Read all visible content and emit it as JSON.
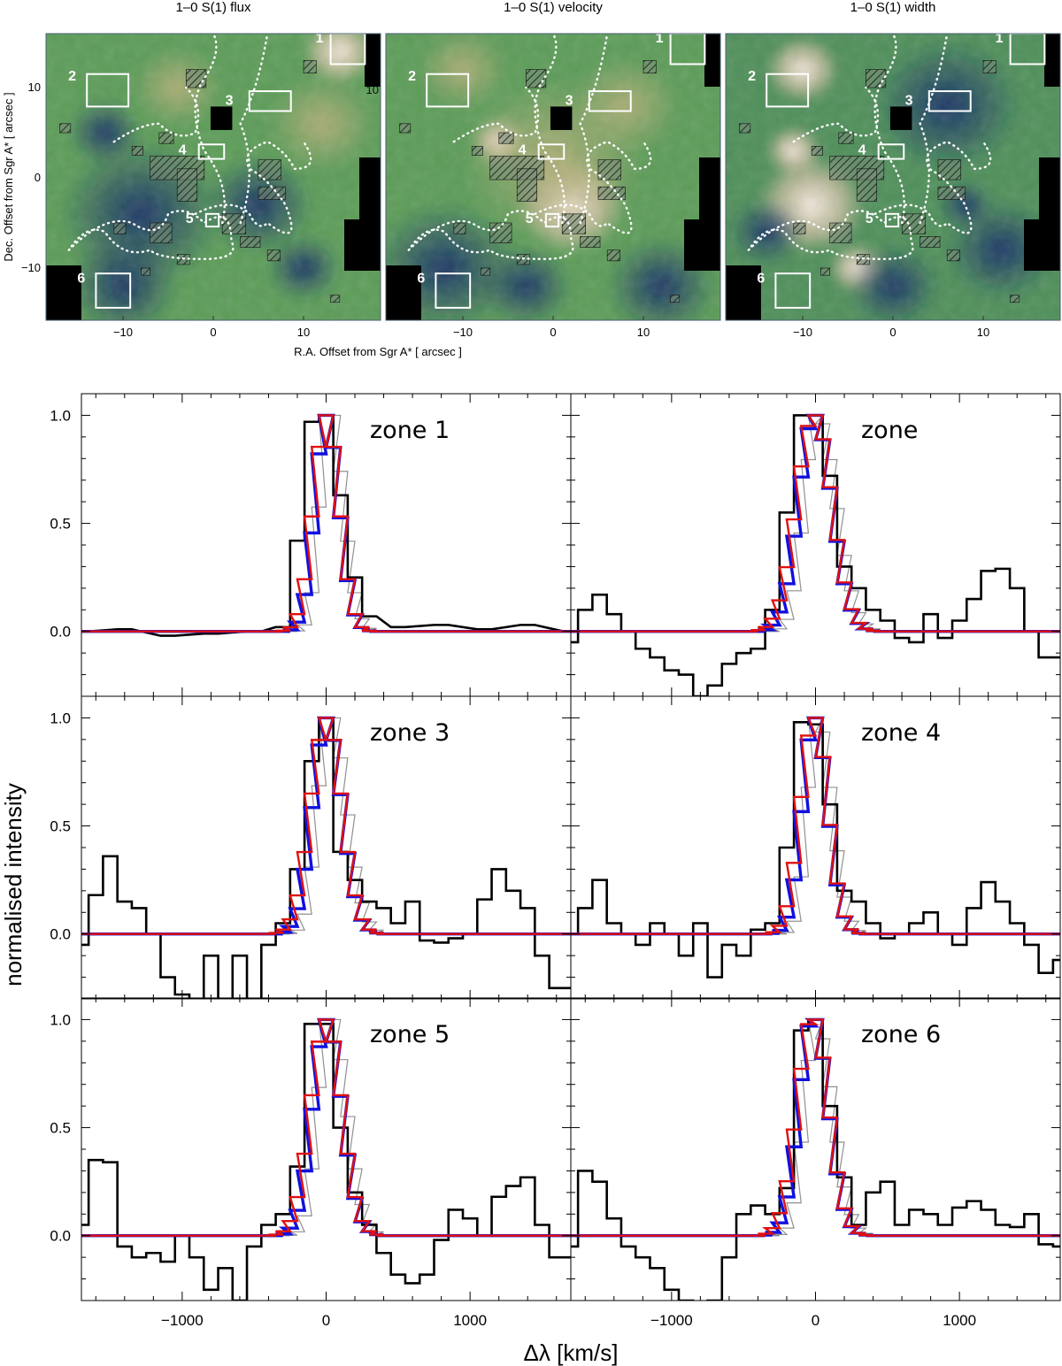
{
  "maps": {
    "panels": [
      {
        "title": "1–0 S(1) flux",
        "kind": "flux"
      },
      {
        "title": "1–0 S(1) velocity",
        "kind": "velocity"
      },
      {
        "title": "1–0 S(1) width",
        "kind": "width"
      }
    ],
    "xlabel": "R.A. Offset from Sgr A* [ arcsec ]",
    "ylabel": "Dec. Offset from Sgr A* [ arcsec ]",
    "x_ticks": [
      "−10",
      "0",
      "10"
    ],
    "y_ticks": [
      "10",
      "0",
      "−10"
    ],
    "stray_tick": "10",
    "box_labels": [
      "1",
      "2",
      "3",
      "4",
      "5",
      "6"
    ],
    "colors": {
      "low": "#1c3a78",
      "mid": "#5a9a55",
      "high": "#f6e6de",
      "mask": "#000000",
      "box": "#ffffff"
    }
  },
  "chart_data": {
    "type": "line",
    "xlabel": "Δλ [km/s]",
    "ylabel": "normalised intensity",
    "xlim": [
      -1700,
      1700
    ],
    "ylim": [
      -0.3,
      1.1
    ],
    "x_ticks": [
      "−1000",
      "0",
      "1000"
    ],
    "y_ticks": [
      "1.0",
      "0.5",
      "0.0"
    ],
    "series_colors": {
      "observed": "#000000",
      "model_blue": "#1010e0",
      "model_red": "#e01010",
      "instrument": "#909090"
    },
    "panels": [
      {
        "label": "zone 1",
        "center": 0,
        "peak_width": 190,
        "observed": {
          "x": [
            -1700,
            -1400,
            -1100,
            -800,
            -500,
            -300,
            -200,
            -100,
            0,
            100,
            200,
            300,
            500,
            800,
            1100,
            1400,
            1700
          ],
          "y": [
            0.0,
            0.01,
            -0.02,
            -0.01,
            0.0,
            0.02,
            0.42,
            0.97,
            1.0,
            0.63,
            0.25,
            0.07,
            0.02,
            0.03,
            0.01,
            0.03,
            0.0
          ]
        }
      },
      {
        "label": "zone",
        "center": -10,
        "peak_width": 260,
        "observed": {
          "x": [
            -1700,
            -1600,
            -1500,
            -1400,
            -1300,
            -1200,
            -1100,
            -1000,
            -900,
            -800,
            -700,
            -600,
            -500,
            -400,
            -300,
            -200,
            -100,
            0,
            100,
            200,
            300,
            400,
            500,
            600,
            700,
            800,
            900,
            1000,
            1100,
            1200,
            1300,
            1400,
            1500,
            1600,
            1700
          ],
          "y": [
            -0.05,
            0.1,
            0.17,
            0.08,
            0.0,
            -0.08,
            -0.12,
            -0.18,
            -0.2,
            -0.3,
            -0.25,
            -0.15,
            -0.1,
            -0.08,
            0.1,
            0.55,
            1.0,
            1.0,
            0.72,
            0.3,
            0.2,
            0.1,
            0.05,
            -0.03,
            -0.05,
            0.08,
            -0.03,
            0.05,
            0.15,
            0.28,
            0.29,
            0.2,
            0.0,
            -0.12,
            -0.12
          ]
        }
      },
      {
        "label": "zone 3",
        "center": 0,
        "peak_width": 230,
        "observed": {
          "x": [
            -1700,
            -1600,
            -1500,
            -1400,
            -1300,
            -1200,
            -1100,
            -1000,
            -900,
            -800,
            -700,
            -600,
            -500,
            -400,
            -300,
            -200,
            -100,
            0,
            100,
            200,
            300,
            400,
            500,
            600,
            700,
            800,
            900,
            1000,
            1100,
            1200,
            1300,
            1400,
            1500,
            1600,
            1700
          ],
          "y": [
            -0.05,
            0.18,
            0.36,
            0.15,
            0.12,
            0.0,
            -0.2,
            -0.28,
            -0.3,
            -0.1,
            -0.3,
            -0.1,
            -0.35,
            -0.05,
            0.05,
            0.3,
            0.8,
            1.0,
            0.38,
            0.25,
            0.15,
            0.12,
            0.05,
            0.15,
            -0.03,
            -0.04,
            -0.02,
            0.0,
            0.16,
            0.3,
            0.2,
            0.12,
            -0.1,
            -0.25,
            -0.25
          ]
        }
      },
      {
        "label": "zone 4",
        "center": -10,
        "peak_width": 200,
        "observed": {
          "x": [
            -1700,
            -1600,
            -1500,
            -1400,
            -1300,
            -1200,
            -1100,
            -1000,
            -900,
            -800,
            -700,
            -600,
            -500,
            -400,
            -300,
            -200,
            -100,
            0,
            100,
            200,
            300,
            400,
            500,
            600,
            700,
            800,
            900,
            1000,
            1100,
            1200,
            1300,
            1400,
            1500,
            1600,
            1700
          ],
          "y": [
            0.0,
            0.12,
            0.25,
            0.05,
            0.0,
            -0.05,
            0.05,
            0.0,
            -0.1,
            0.05,
            -0.2,
            -0.05,
            -0.1,
            0.02,
            0.05,
            0.4,
            0.98,
            0.97,
            0.6,
            0.2,
            0.15,
            0.05,
            -0.02,
            0.0,
            0.05,
            0.1,
            0.0,
            -0.05,
            0.12,
            0.24,
            0.15,
            0.05,
            -0.05,
            -0.18,
            -0.12
          ]
        }
      },
      {
        "label": "zone 5",
        "center": 0,
        "peak_width": 230,
        "observed": {
          "x": [
            -1700,
            -1600,
            -1500,
            -1400,
            -1300,
            -1200,
            -1100,
            -1000,
            -900,
            -800,
            -700,
            -600,
            -500,
            -400,
            -300,
            -200,
            -100,
            0,
            100,
            200,
            300,
            400,
            500,
            600,
            700,
            800,
            900,
            1000,
            1100,
            1200,
            1300,
            1400,
            1500,
            1600,
            1700
          ],
          "y": [
            0.05,
            0.35,
            0.34,
            -0.05,
            -0.1,
            -0.08,
            -0.12,
            0.0,
            -0.1,
            -0.25,
            -0.15,
            -0.3,
            -0.05,
            0.05,
            0.1,
            0.32,
            0.98,
            0.98,
            0.5,
            0.2,
            0.05,
            -0.08,
            -0.18,
            -0.22,
            -0.18,
            -0.02,
            0.12,
            0.08,
            0.0,
            0.18,
            0.23,
            0.27,
            0.05,
            -0.1,
            -0.1
          ]
        }
      },
      {
        "label": "zone 6",
        "center": -20,
        "peak_width": 230,
        "observed": {
          "x": [
            -1700,
            -1600,
            -1500,
            -1400,
            -1300,
            -1200,
            -1100,
            -1000,
            -900,
            -800,
            -700,
            -600,
            -500,
            -400,
            -300,
            -200,
            -100,
            0,
            100,
            200,
            300,
            400,
            500,
            600,
            700,
            800,
            900,
            1000,
            1100,
            1200,
            1300,
            1400,
            1500,
            1600,
            1700
          ],
          "y": [
            -0.05,
            0.3,
            0.25,
            0.08,
            -0.05,
            -0.1,
            -0.15,
            -0.25,
            -0.3,
            -0.35,
            -0.3,
            -0.1,
            0.1,
            0.14,
            0.1,
            0.22,
            0.95,
            1.0,
            0.6,
            0.27,
            0.05,
            0.2,
            0.25,
            0.05,
            0.12,
            0.1,
            0.05,
            0.13,
            0.16,
            0.12,
            0.05,
            0.04,
            0.1,
            -0.04,
            -0.05
          ]
        }
      }
    ]
  }
}
